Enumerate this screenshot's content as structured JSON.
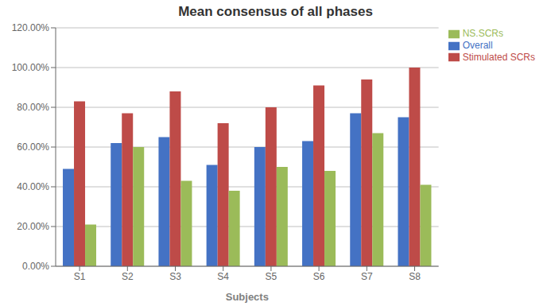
{
  "chart_data": {
    "type": "bar",
    "title": "Mean consensus of all phases",
    "xlabel": "Subjects",
    "categories": [
      "S1",
      "S2",
      "S3",
      "S4",
      "S5",
      "S6",
      "S7",
      "S8"
    ],
    "series": [
      {
        "name": "Overall",
        "color": "#4472C4",
        "values": [
          0.49,
          0.62,
          0.65,
          0.51,
          0.6,
          0.63,
          0.77,
          0.75
        ]
      },
      {
        "name": "Stimulated SCRs",
        "color": "#BE4B48",
        "values": [
          0.83,
          0.77,
          0.88,
          0.72,
          0.8,
          0.91,
          0.94,
          1.0
        ]
      },
      {
        "name": "NS.SCRs",
        "color": "#9BBB59",
        "values": [
          0.21,
          0.6,
          0.43,
          0.38,
          0.5,
          0.48,
          0.67,
          0.41
        ]
      }
    ],
    "ylim": [
      0.0,
      1.2
    ],
    "yticks": [
      {
        "value": 0.0,
        "label": "0.00%"
      },
      {
        "value": 0.2,
        "label": "20.00%"
      },
      {
        "value": 0.4,
        "label": "40.00%"
      },
      {
        "value": 0.6,
        "label": "60.00%"
      },
      {
        "value": 0.8,
        "label": "80.00%"
      },
      {
        "value": 1.0,
        "label": "100.00%"
      },
      {
        "value": 1.2,
        "label": "120.00%"
      }
    ],
    "grid": true,
    "legend": "right"
  }
}
